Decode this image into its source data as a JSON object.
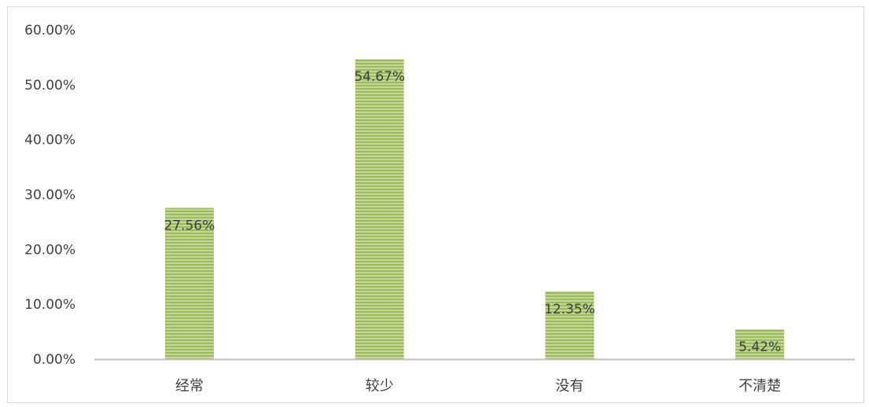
{
  "chart_data": {
    "type": "bar",
    "categories": [
      "经常",
      "较少",
      "没有",
      "不清楚"
    ],
    "values": [
      27.56,
      54.67,
      12.35,
      5.42
    ],
    "data_labels": [
      "27.56%",
      "54.67%",
      "12.35%",
      "5.42%"
    ],
    "title": "",
    "xlabel": "",
    "ylabel": "",
    "ylim": [
      0,
      60
    ],
    "yticks": [
      0,
      10,
      20,
      30,
      40,
      50,
      60
    ],
    "ytick_labels": [
      "0.00%",
      "10.00%",
      "20.00%",
      "30.00%",
      "40.00%",
      "50.00%",
      "60.00%"
    ],
    "grid": false,
    "legend": "none",
    "bar_color": "#9bbb59",
    "bar_stripe_color": "#c3d69b",
    "bar_pattern": "horizontal-stripes"
  }
}
